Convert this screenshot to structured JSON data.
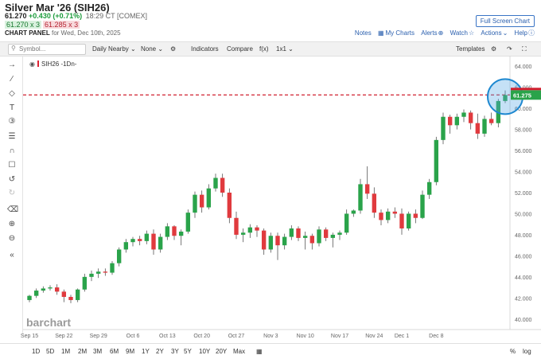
{
  "header": {
    "title": "Silver Mar '26 (SIH26)",
    "last": "61.270",
    "change": "+0.430 (+0.71%)",
    "time": "18:29 CT [COMEX]",
    "bid": "61.270 x 3",
    "ask": "61.285 x 3",
    "panel_label": "CHART PANEL",
    "panel_date": "for Wed, Dec 10th, 2025",
    "fullscreen": "Full Screen Chart",
    "links": [
      "Notes",
      "My Charts",
      "Alerts",
      "Watch",
      "Actions",
      "Help"
    ]
  },
  "toolbar": {
    "search_placeholder": "Symbol...",
    "aggregation": "Daily Nearby",
    "studies": "None",
    "indicators": "Indicators",
    "compare": "Compare",
    "fx": "f(x)",
    "layout": "1x1",
    "templates": "Templates"
  },
  "legend": "SIH26 -1Dn-",
  "logo": "barchart",
  "last_price_label": "61.275",
  "colors": {
    "up": "#2aa34a",
    "down": "#e03a3e",
    "line": "#d11f2f",
    "circle": "#1e88d0",
    "link": "#2a5fae"
  },
  "bottom": {
    "ranges": [
      "1D",
      "5D",
      "1M",
      "2M",
      "3M",
      "6M",
      "9M",
      "1Y",
      "2Y",
      "3Y",
      "5Y",
      "10Y",
      "20Y",
      "Max"
    ],
    "right": [
      "%",
      "log"
    ]
  },
  "chart_data": {
    "type": "candlestick",
    "title": "Silver Mar '26 (SIH26) Daily Nearby",
    "ylim": [
      39,
      65
    ],
    "yticks": [
      40,
      42,
      44,
      46,
      48,
      50,
      52,
      54,
      56,
      58,
      60,
      62,
      64
    ],
    "ytick_labels": [
      "40.000",
      "42.000",
      "44.000",
      "46.000",
      "48.000",
      "50.000",
      "52.000",
      "54.000",
      "56.000",
      "58.000",
      "60.000",
      "62.000",
      "64.000"
    ],
    "xtick_labels": [
      {
        "label": "Sep 15",
        "index": 0
      },
      {
        "label": "Sep 22",
        "index": 5
      },
      {
        "label": "Sep 29",
        "index": 10
      },
      {
        "label": "Oct 6",
        "index": 15
      },
      {
        "label": "Oct 13",
        "index": 20
      },
      {
        "label": "Oct 20",
        "index": 25
      },
      {
        "label": "Oct 27",
        "index": 30
      },
      {
        "label": "Nov 3",
        "index": 35
      },
      {
        "label": "Nov 10",
        "index": 40
      },
      {
        "label": "Nov 17",
        "index": 45
      },
      {
        "label": "Nov 24",
        "index": 50
      },
      {
        "label": "Dec 1",
        "index": 54
      },
      {
        "label": "Dec 8",
        "index": 59
      }
    ],
    "reference_line": 61.275,
    "ohlc": [
      [
        41.8,
        42.3,
        41.6,
        42.2
      ],
      [
        42.2,
        42.9,
        42.0,
        42.7
      ],
      [
        42.7,
        43.1,
        42.5,
        42.9
      ],
      [
        42.9,
        43.2,
        42.7,
        43.0
      ],
      [
        43.0,
        43.3,
        42.3,
        42.6
      ],
      [
        42.6,
        42.8,
        41.6,
        42.1
      ],
      [
        42.1,
        42.3,
        41.5,
        41.8
      ],
      [
        41.8,
        42.9,
        41.6,
        42.8
      ],
      [
        42.8,
        44.3,
        42.6,
        44.0
      ],
      [
        44.0,
        44.6,
        43.6,
        44.3
      ],
      [
        44.3,
        44.8,
        43.9,
        44.5
      ],
      [
        44.5,
        44.8,
        44.1,
        44.4
      ],
      [
        44.4,
        45.5,
        44.2,
        45.3
      ],
      [
        45.3,
        46.8,
        45.0,
        46.6
      ],
      [
        46.6,
        47.6,
        46.3,
        47.3
      ],
      [
        47.3,
        47.8,
        46.9,
        47.6
      ],
      [
        47.6,
        47.9,
        47.0,
        47.4
      ],
      [
        47.4,
        48.4,
        47.1,
        48.1
      ],
      [
        48.1,
        48.5,
        46.1,
        46.6
      ],
      [
        46.6,
        48.1,
        46.3,
        47.8
      ],
      [
        47.8,
        49.1,
        47.5,
        48.8
      ],
      [
        48.8,
        48.9,
        47.5,
        47.9
      ],
      [
        47.9,
        48.5,
        47.0,
        48.3
      ],
      [
        48.3,
        50.4,
        48.1,
        50.1
      ],
      [
        50.1,
        52.1,
        49.6,
        51.8
      ],
      [
        51.8,
        52.2,
        50.1,
        50.6
      ],
      [
        50.6,
        52.8,
        50.4,
        52.4
      ],
      [
        52.4,
        53.8,
        52.1,
        53.4
      ],
      [
        53.4,
        53.8,
        51.6,
        52.0
      ],
      [
        52.0,
        52.4,
        49.1,
        49.6
      ],
      [
        49.6,
        50.2,
        47.6,
        48.0
      ],
      [
        48.0,
        48.6,
        47.3,
        48.2
      ],
      [
        48.2,
        49.0,
        47.7,
        48.7
      ],
      [
        48.7,
        48.9,
        47.8,
        48.4
      ],
      [
        48.4,
        48.6,
        46.1,
        46.6
      ],
      [
        46.6,
        48.2,
        46.3,
        47.9
      ],
      [
        47.9,
        48.2,
        45.6,
        47.0
      ],
      [
        47.0,
        48.1,
        46.6,
        47.8
      ],
      [
        47.8,
        48.9,
        47.5,
        48.6
      ],
      [
        48.6,
        48.8,
        47.4,
        47.7
      ],
      [
        47.7,
        48.3,
        46.6,
        47.9
      ],
      [
        47.9,
        48.1,
        46.6,
        47.2
      ],
      [
        47.2,
        48.8,
        46.9,
        48.5
      ],
      [
        48.5,
        48.7,
        47.4,
        47.7
      ],
      [
        47.7,
        48.2,
        46.8,
        48.0
      ],
      [
        48.0,
        48.4,
        47.5,
        48.2
      ],
      [
        48.2,
        50.4,
        48.0,
        50.0
      ],
      [
        50.0,
        50.4,
        49.7,
        50.3
      ],
      [
        50.3,
        53.3,
        50.0,
        52.8
      ],
      [
        52.8,
        54.5,
        51.4,
        51.9
      ],
      [
        51.9,
        52.5,
        49.6,
        50.1
      ],
      [
        50.1,
        50.4,
        48.9,
        49.4
      ],
      [
        49.4,
        50.5,
        49.1,
        50.2
      ],
      [
        50.2,
        50.6,
        49.6,
        50.0
      ],
      [
        50.0,
        50.5,
        48.0,
        48.6
      ],
      [
        48.6,
        50.2,
        48.4,
        50.0
      ],
      [
        50.0,
        50.4,
        49.1,
        49.6
      ],
      [
        49.6,
        52.2,
        49.5,
        51.8
      ],
      [
        51.8,
        53.3,
        51.4,
        53.0
      ],
      [
        53.0,
        57.3,
        52.7,
        57.0
      ],
      [
        57.0,
        59.6,
        56.6,
        59.2
      ],
      [
        59.2,
        59.4,
        57.6,
        58.4
      ],
      [
        58.4,
        59.5,
        58.0,
        59.2
      ],
      [
        59.2,
        59.9,
        58.7,
        59.6
      ],
      [
        59.6,
        59.8,
        58.0,
        58.6
      ],
      [
        58.6,
        59.5,
        57.1,
        57.6
      ],
      [
        57.6,
        59.3,
        57.3,
        59.0
      ],
      [
        59.0,
        59.6,
        58.4,
        58.6
      ],
      [
        58.6,
        60.9,
        58.2,
        60.7
      ],
      [
        60.7,
        61.7,
        60.5,
        61.27
      ]
    ]
  }
}
